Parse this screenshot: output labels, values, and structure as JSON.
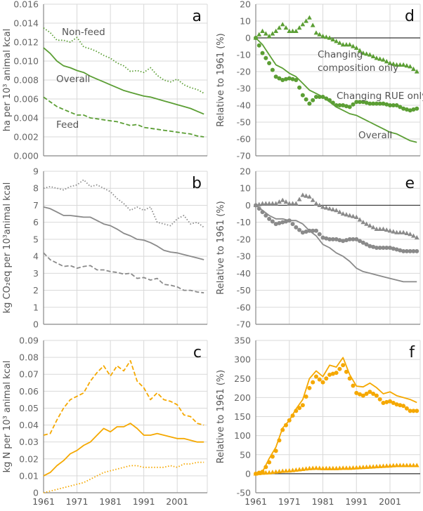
{
  "colors": {
    "green": "#5b9e34",
    "grey": "#8a8a8a",
    "orange": "#f5a800",
    "zero_line": "#333333",
    "grid": "#d9d9d9"
  },
  "x_ticks": [
    "1961",
    "1971",
    "1981",
    "1991",
    "2001"
  ],
  "chart_data": [
    {
      "panel": "a",
      "type": "line",
      "color": "green",
      "ylabel": "ha per 10³ animal kcal",
      "ylim": [
        0,
        0.016
      ],
      "yticks": [
        "0.000",
        "0.002",
        "0.004",
        "0.006",
        "0.008",
        "0.010",
        "0.012",
        "0.014",
        "0.016"
      ],
      "xlim": [
        1961,
        2010
      ],
      "grid": true,
      "x": [
        1961,
        1963,
        1965,
        1967,
        1969,
        1971,
        1973,
        1975,
        1977,
        1979,
        1981,
        1983,
        1985,
        1987,
        1989,
        1991,
        1993,
        1995,
        1997,
        1999,
        2001,
        2003,
        2005,
        2007,
        2009
      ],
      "series": [
        {
          "name": "Non-feed",
          "style": "dotted",
          "values": [
            0.0135,
            0.013,
            0.0122,
            0.0122,
            0.012,
            0.0125,
            0.0115,
            0.0113,
            0.011,
            0.0106,
            0.0103,
            0.0098,
            0.0095,
            0.0089,
            0.009,
            0.0088,
            0.0093,
            0.0085,
            0.008,
            0.0078,
            0.0081,
            0.0075,
            0.0072,
            0.007,
            0.0066
          ]
        },
        {
          "name": "Overall",
          "style": "solid",
          "values": [
            0.0114,
            0.0108,
            0.01,
            0.0095,
            0.0093,
            0.009,
            0.0088,
            0.0084,
            0.0081,
            0.0078,
            0.0075,
            0.0072,
            0.0069,
            0.0067,
            0.0065,
            0.0063,
            0.0062,
            0.006,
            0.0058,
            0.0056,
            0.0054,
            0.0052,
            0.005,
            0.0047,
            0.0044
          ]
        },
        {
          "name": "Feed",
          "style": "dashed",
          "values": [
            0.0062,
            0.0057,
            0.0052,
            0.0049,
            0.0046,
            0.0043,
            0.0043,
            0.004,
            0.0039,
            0.0038,
            0.0037,
            0.0036,
            0.0034,
            0.0032,
            0.0033,
            0.003,
            0.0029,
            0.0028,
            0.0027,
            0.0026,
            0.0025,
            0.0024,
            0.0023,
            0.0021,
            0.002
          ]
        }
      ],
      "annotations": [
        "Non-feed",
        "Overall",
        "Feed"
      ]
    },
    {
      "panel": "b",
      "type": "line",
      "color": "grey",
      "ylabel": "kg CO₂eq per 10³animal kcal",
      "ylim": [
        0,
        9
      ],
      "yticks": [
        "0",
        "1",
        "2",
        "3",
        "4",
        "5",
        "6",
        "7",
        "8",
        "9"
      ],
      "xlim": [
        1961,
        2010
      ],
      "grid": true,
      "x": [
        1961,
        1963,
        1965,
        1967,
        1969,
        1971,
        1973,
        1975,
        1977,
        1979,
        1981,
        1983,
        1985,
        1987,
        1989,
        1991,
        1993,
        1995,
        1997,
        1999,
        2001,
        2003,
        2005,
        2007,
        2009
      ],
      "series": [
        {
          "style": "dotted",
          "values": [
            8.0,
            8.1,
            8.0,
            7.9,
            8.1,
            8.2,
            8.5,
            8.1,
            8.2,
            8.0,
            7.8,
            7.4,
            7.1,
            6.7,
            6.9,
            6.7,
            6.9,
            6.0,
            5.9,
            5.8,
            6.2,
            6.4,
            5.9,
            6.0,
            5.7
          ]
        },
        {
          "style": "solid",
          "values": [
            6.9,
            6.8,
            6.6,
            6.4,
            6.4,
            6.35,
            6.3,
            6.3,
            6.1,
            5.9,
            5.8,
            5.6,
            5.35,
            5.2,
            5.0,
            4.95,
            4.8,
            4.6,
            4.35,
            4.25,
            4.2,
            4.1,
            4.0,
            3.9,
            3.8
          ]
        },
        {
          "style": "dashed",
          "values": [
            4.2,
            3.8,
            3.6,
            3.4,
            3.45,
            3.3,
            3.4,
            3.45,
            3.2,
            3.2,
            3.1,
            3.05,
            2.95,
            3.0,
            2.7,
            2.75,
            2.6,
            2.7,
            2.35,
            2.3,
            2.2,
            2.0,
            2.0,
            1.9,
            1.85
          ]
        }
      ]
    },
    {
      "panel": "c",
      "type": "line",
      "color": "orange",
      "ylabel": "kg N per 10³ animal kcal",
      "ylim": [
        0,
        0.09
      ],
      "yticks": [
        "0",
        "0.01",
        "0.02",
        "0.03",
        "0.04",
        "0.05",
        "0.06",
        "0.07",
        "0.08",
        "0.09"
      ],
      "xlim": [
        1961,
        2010
      ],
      "grid": true,
      "x": [
        1961,
        1963,
        1965,
        1967,
        1969,
        1971,
        1973,
        1975,
        1977,
        1979,
        1981,
        1983,
        1985,
        1987,
        1989,
        1991,
        1993,
        1995,
        1997,
        1999,
        2001,
        2003,
        2005,
        2007,
        2009
      ],
      "series": [
        {
          "style": "dashed",
          "values": [
            0.034,
            0.035,
            0.043,
            0.05,
            0.055,
            0.057,
            0.059,
            0.066,
            0.071,
            0.075,
            0.069,
            0.075,
            0.072,
            0.078,
            0.066,
            0.062,
            0.055,
            0.059,
            0.055,
            0.054,
            0.052,
            0.046,
            0.045,
            0.041,
            0.04
          ]
        },
        {
          "style": "solid",
          "values": [
            0.01,
            0.012,
            0.016,
            0.019,
            0.023,
            0.025,
            0.028,
            0.03,
            0.034,
            0.038,
            0.036,
            0.039,
            0.039,
            0.041,
            0.038,
            0.034,
            0.034,
            0.035,
            0.034,
            0.033,
            0.032,
            0.032,
            0.031,
            0.03,
            0.03
          ]
        },
        {
          "style": "dotted",
          "values": [
            0.0,
            0.001,
            0.002,
            0.003,
            0.004,
            0.005,
            0.006,
            0.008,
            0.01,
            0.012,
            0.013,
            0.014,
            0.015,
            0.016,
            0.016,
            0.015,
            0.015,
            0.015,
            0.015,
            0.016,
            0.015,
            0.017,
            0.017,
            0.018,
            0.018
          ]
        }
      ]
    },
    {
      "panel": "d",
      "type": "line+scatter",
      "color": "green",
      "ylabel": "Relative to 1961 (%)",
      "ylim": [
        -70,
        20
      ],
      "yticks": [
        "-70",
        "-60",
        "-50",
        "-40",
        "-30",
        "-20",
        "-10",
        "0",
        "10",
        "20"
      ],
      "xlim": [
        1961,
        2010
      ],
      "grid": true,
      "x": [
        1961,
        1963,
        1965,
        1967,
        1969,
        1971,
        1973,
        1975,
        1977,
        1979,
        1981,
        1983,
        1985,
        1987,
        1989,
        1991,
        1993,
        1995,
        1997,
        1999,
        2001,
        2003,
        2005,
        2007,
        2009
      ],
      "series": [
        {
          "name": "Changing composition only",
          "style": "triangle",
          "values": [
            0,
            4,
            1,
            4,
            8,
            4,
            4,
            8,
            12,
            3,
            1,
            0,
            -2,
            -4,
            -4,
            -6,
            -9,
            -10,
            -12,
            -13,
            -15,
            -16,
            -16,
            -17,
            -20
          ]
        },
        {
          "name": "Changing RUE only",
          "style": "circle",
          "values": [
            0,
            -9,
            -15,
            -23,
            -25,
            -24,
            -25,
            -34,
            -39,
            -35,
            -35,
            -37,
            -40,
            -40,
            -41,
            -38,
            -38,
            -39,
            -39,
            -39,
            -40,
            -40,
            -42,
            -43,
            -42
          ]
        },
        {
          "name": "Overall",
          "style": "solid",
          "values": [
            0,
            -4,
            -10,
            -16,
            -18,
            -21,
            -23,
            -27,
            -31,
            -33,
            -35,
            -38,
            -41,
            -43,
            -45,
            -46,
            -48,
            -50,
            -52,
            -54,
            -56,
            -57,
            -59,
            -61,
            -62
          ]
        }
      ],
      "annotations": [
        "Changing",
        "composition only",
        "Changing RUE only",
        "Overall"
      ]
    },
    {
      "panel": "e",
      "type": "line+scatter",
      "color": "grey",
      "ylabel": "Relative to 1961 (%)",
      "ylim": [
        -70,
        20
      ],
      "yticks": [
        "-70",
        "-60",
        "-50",
        "-40",
        "-30",
        "-20",
        "-10",
        "0",
        "10",
        "20"
      ],
      "xlim": [
        1961,
        2010
      ],
      "grid": true,
      "x": [
        1961,
        1963,
        1965,
        1967,
        1969,
        1971,
        1973,
        1975,
        1977,
        1979,
        1981,
        1983,
        1985,
        1987,
        1989,
        1991,
        1993,
        1995,
        1997,
        1999,
        2001,
        2003,
        2005,
        2007,
        2009
      ],
      "series": [
        {
          "style": "triangle",
          "values": [
            0,
            1,
            1,
            1,
            3,
            1,
            1,
            6,
            5,
            1,
            -1,
            -2,
            -3,
            -5,
            -6,
            -7,
            -10,
            -12,
            -14,
            -14,
            -15,
            -16,
            -16,
            -17,
            -19
          ]
        },
        {
          "style": "circle",
          "values": [
            0,
            -4,
            -8,
            -11,
            -10,
            -9,
            -13,
            -16,
            -15,
            -15,
            -19,
            -20,
            -20,
            -21,
            -20,
            -20,
            -22,
            -24,
            -25,
            -25,
            -25,
            -26,
            -27,
            -27,
            -27
          ]
        },
        {
          "style": "solid",
          "values": [
            0,
            -3,
            -6,
            -8,
            -8,
            -9,
            -9,
            -11,
            -15,
            -18,
            -23,
            -25,
            -28,
            -30,
            -33,
            -37,
            -39,
            -40,
            -41,
            -42,
            -43,
            -44,
            -45,
            -45,
            -45
          ]
        }
      ]
    },
    {
      "panel": "f",
      "type": "line+scatter",
      "color": "orange",
      "ylabel": "Relative to 1961 (%)",
      "ylim": [
        -50,
        350
      ],
      "yticks": [
        "-50",
        "0",
        "50",
        "100",
        "150",
        "200",
        "250",
        "300",
        "350"
      ],
      "xlim": [
        1961,
        2010
      ],
      "grid": true,
      "x": [
        1961,
        1963,
        1965,
        1967,
        1969,
        1971,
        1973,
        1975,
        1977,
        1979,
        1981,
        1983,
        1985,
        1987,
        1989,
        1991,
        1993,
        1995,
        1997,
        1999,
        2001,
        2003,
        2005,
        2007,
        2009
      ],
      "series": [
        {
          "style": "solid",
          "values": [
            0,
            5,
            40,
            70,
            120,
            140,
            170,
            195,
            250,
            270,
            255,
            285,
            280,
            305,
            260,
            230,
            228,
            238,
            226,
            210,
            215,
            205,
            200,
            195,
            187
          ]
        },
        {
          "style": "circle",
          "values": [
            0,
            5,
            30,
            60,
            115,
            140,
            165,
            180,
            225,
            255,
            240,
            260,
            265,
            285,
            250,
            212,
            205,
            215,
            205,
            186,
            190,
            182,
            178,
            165,
            165
          ]
        },
        {
          "style": "triangle",
          "values": [
            0,
            2,
            3,
            5,
            7,
            8,
            10,
            12,
            14,
            15,
            14,
            14,
            14,
            15,
            15,
            16,
            17,
            18,
            19,
            20,
            21,
            22,
            22,
            22,
            22
          ]
        }
      ]
    }
  ]
}
